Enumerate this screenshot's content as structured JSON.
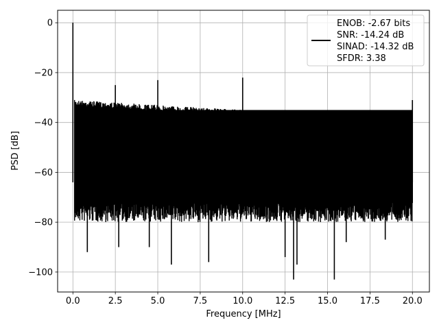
{
  "chart_data": {
    "type": "line",
    "title": "",
    "xlabel": "Frequency [MHz]",
    "ylabel": "PSD [dB]",
    "xlim": [
      -0.9,
      21.0
    ],
    "ylim": [
      -108,
      5
    ],
    "grid": true,
    "xticks": [
      0.0,
      2.5,
      5.0,
      7.5,
      10.0,
      12.5,
      15.0,
      17.5,
      20.0
    ],
    "xtick_labels": [
      "0.0",
      "2.5",
      "5.0",
      "7.5",
      "10.0",
      "12.5",
      "15.0",
      "17.5",
      "20.0"
    ],
    "yticks": [
      0,
      -20,
      -40,
      -60,
      -80,
      -100
    ],
    "ytick_labels": [
      "0",
      "−20",
      "−40",
      "−60",
      "−80",
      "−100"
    ],
    "legend": {
      "placement": "top-right",
      "entries": [
        "ENOB: -2.67 bits",
        "SNR: -14.24 dB",
        "SINAD: -14.32 dB",
        "SFDR: 3.38"
      ]
    },
    "series": [
      {
        "color": "#000000",
        "noise_floor_top": [
          [
            0.1,
            -31
          ],
          [
            2.5,
            -32
          ],
          [
            5.0,
            -33
          ],
          [
            7.5,
            -34
          ],
          [
            10.0,
            -35
          ],
          [
            12.5,
            -35.5
          ],
          [
            15.0,
            -36
          ],
          [
            17.5,
            -36
          ],
          [
            20.0,
            -36
          ]
        ],
        "noise_floor_bottom": [
          [
            0.1,
            -72
          ],
          [
            5.0,
            -72
          ],
          [
            10.0,
            -72
          ],
          [
            15.0,
            -72
          ],
          [
            20.0,
            -72
          ]
        ],
        "spikes": [
          {
            "x": 0.0,
            "y": 0
          },
          {
            "x": 2.5,
            "y": -25
          },
          {
            "x": 5.0,
            "y": -23
          },
          {
            "x": 10.0,
            "y": -22
          },
          {
            "x": 20.0,
            "y": -31
          }
        ],
        "dips": [
          {
            "x": 0.85,
            "y": -92
          },
          {
            "x": 2.7,
            "y": -90
          },
          {
            "x": 4.5,
            "y": -90
          },
          {
            "x": 5.8,
            "y": -97
          },
          {
            "x": 8.0,
            "y": -96
          },
          {
            "x": 12.5,
            "y": -94
          },
          {
            "x": 13.0,
            "y": -103
          },
          {
            "x": 13.2,
            "y": -97
          },
          {
            "x": 15.4,
            "y": -103
          },
          {
            "x": 16.1,
            "y": -88
          },
          {
            "x": 18.4,
            "y": -87
          }
        ]
      }
    ]
  }
}
